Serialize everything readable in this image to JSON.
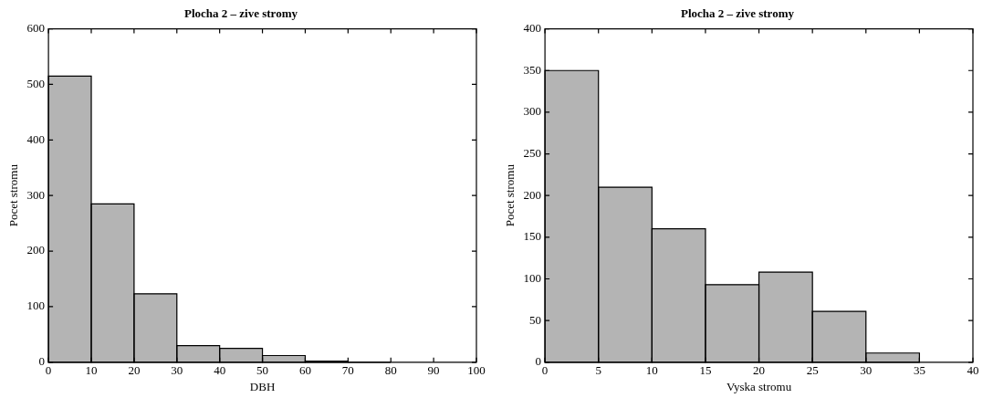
{
  "chart_data": [
    {
      "type": "histogram",
      "title": "Plocha 2 – zive stromy",
      "xlabel": "DBH",
      "ylabel": "Pocet stromu",
      "bins": [
        0,
        10,
        20,
        30,
        40,
        50,
        60,
        70,
        80
      ],
      "values": [
        515,
        285,
        123,
        30,
        25,
        12,
        2,
        null
      ],
      "color": "#b4b4b4",
      "xlim": [
        0,
        100
      ],
      "xticks": [
        0,
        10,
        20,
        30,
        40,
        50,
        60,
        70,
        80,
        90,
        100
      ],
      "ylim": [
        0,
        600
      ],
      "yticks": [
        0,
        100,
        200,
        300,
        400,
        500,
        600
      ],
      "grid": false,
      "legend": false
    },
    {
      "type": "histogram",
      "title": "Plocha 2 – zive stromy",
      "xlabel": "Vyska stromu",
      "ylabel": "Pocet stromu",
      "bins": [
        0,
        5,
        10,
        15,
        20,
        25,
        30,
        35
      ],
      "values": [
        350,
        210,
        160,
        93,
        108,
        61,
        11
      ],
      "color": "#b4b4b4",
      "xlim": [
        0,
        40
      ],
      "xticks": [
        0,
        5,
        10,
        15,
        20,
        25,
        30,
        35,
        40
      ],
      "ylim": [
        0,
        400
      ],
      "yticks": [
        0,
        50,
        100,
        150,
        200,
        250,
        300,
        350,
        400
      ],
      "grid": false,
      "legend": false
    }
  ]
}
